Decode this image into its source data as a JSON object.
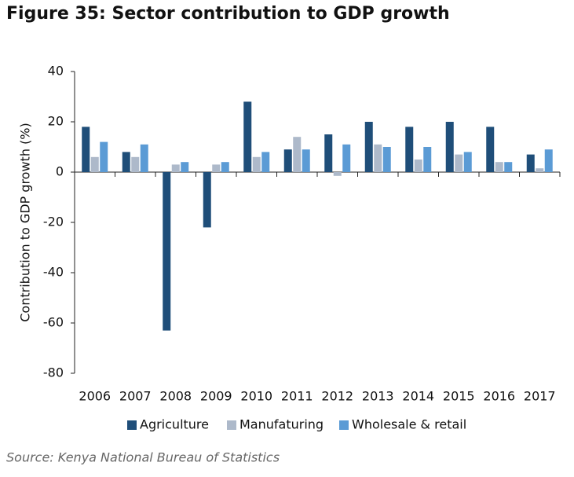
{
  "chart_data": {
    "type": "bar",
    "title": "Figure 35: Sector contribution to GDP growth",
    "y_label": "Contribution to GDP growth (%)",
    "source": "Source: Kenya National Bureau of Statistics",
    "categories": [
      "2006",
      "2007",
      "2008",
      "2009",
      "2010",
      "2011",
      "2012",
      "2013",
      "2014",
      "2015",
      "2016",
      "2017"
    ],
    "series": [
      {
        "name": "Agriculture",
        "color": "#1f4e79",
        "values": [
          18,
          8,
          -63,
          -22,
          28,
          9,
          15,
          20,
          18,
          20,
          18,
          7
        ]
      },
      {
        "name": "Manufaturing",
        "color": "#adb9ca",
        "values": [
          6,
          6,
          3,
          3,
          6,
          14,
          -1.5,
          11,
          5,
          7,
          4,
          1.5
        ]
      },
      {
        "name": "Wholesale & retail",
        "color": "#5b9bd5",
        "values": [
          12,
          11,
          4,
          4,
          8,
          9,
          11,
          10,
          10,
          8,
          4,
          9
        ]
      }
    ],
    "ylim": [
      -80,
      40
    ],
    "yticks": [
      -80,
      -60,
      -40,
      -20,
      0,
      20,
      40
    ],
    "grid": false,
    "legend": "bottom"
  }
}
